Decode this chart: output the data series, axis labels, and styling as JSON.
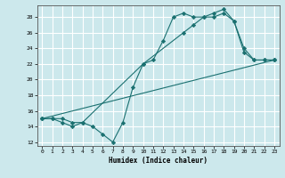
{
  "title": "",
  "xlabel": "Humidex (Indice chaleur)",
  "ylabel": "",
  "background_color": "#cce8ec",
  "grid_color": "#ffffff",
  "line_color": "#1a7070",
  "xlim": [
    -0.5,
    23.5
  ],
  "ylim": [
    11.5,
    29.5
  ],
  "xticks": [
    0,
    1,
    2,
    3,
    4,
    5,
    6,
    7,
    8,
    9,
    10,
    11,
    12,
    13,
    14,
    15,
    16,
    17,
    18,
    19,
    20,
    21,
    22,
    23
  ],
  "yticks": [
    12,
    14,
    16,
    18,
    20,
    22,
    24,
    26,
    28
  ],
  "line1_x": [
    0,
    1,
    2,
    3,
    4,
    5,
    6,
    7,
    8,
    9,
    10,
    11,
    12,
    13,
    14,
    15,
    16,
    17,
    18,
    19,
    20,
    21,
    22,
    23
  ],
  "line1_y": [
    15,
    15,
    15,
    14.5,
    14.5,
    14,
    13,
    12,
    14.5,
    19,
    22,
    22.5,
    25,
    28,
    28.5,
    28,
    28,
    28.5,
    29,
    27.5,
    23.5,
    22.5,
    22.5,
    22.5
  ],
  "line2_x": [
    0,
    1,
    2,
    3,
    4,
    10,
    14,
    15,
    16,
    17,
    18,
    19,
    20,
    21,
    22,
    23
  ],
  "line2_y": [
    15,
    15,
    14.5,
    14,
    14.5,
    22,
    26,
    27,
    28,
    28,
    28.5,
    27.5,
    24,
    22.5,
    22.5,
    22.5
  ],
  "line3_x": [
    0,
    23
  ],
  "line3_y": [
    15,
    22.5
  ]
}
